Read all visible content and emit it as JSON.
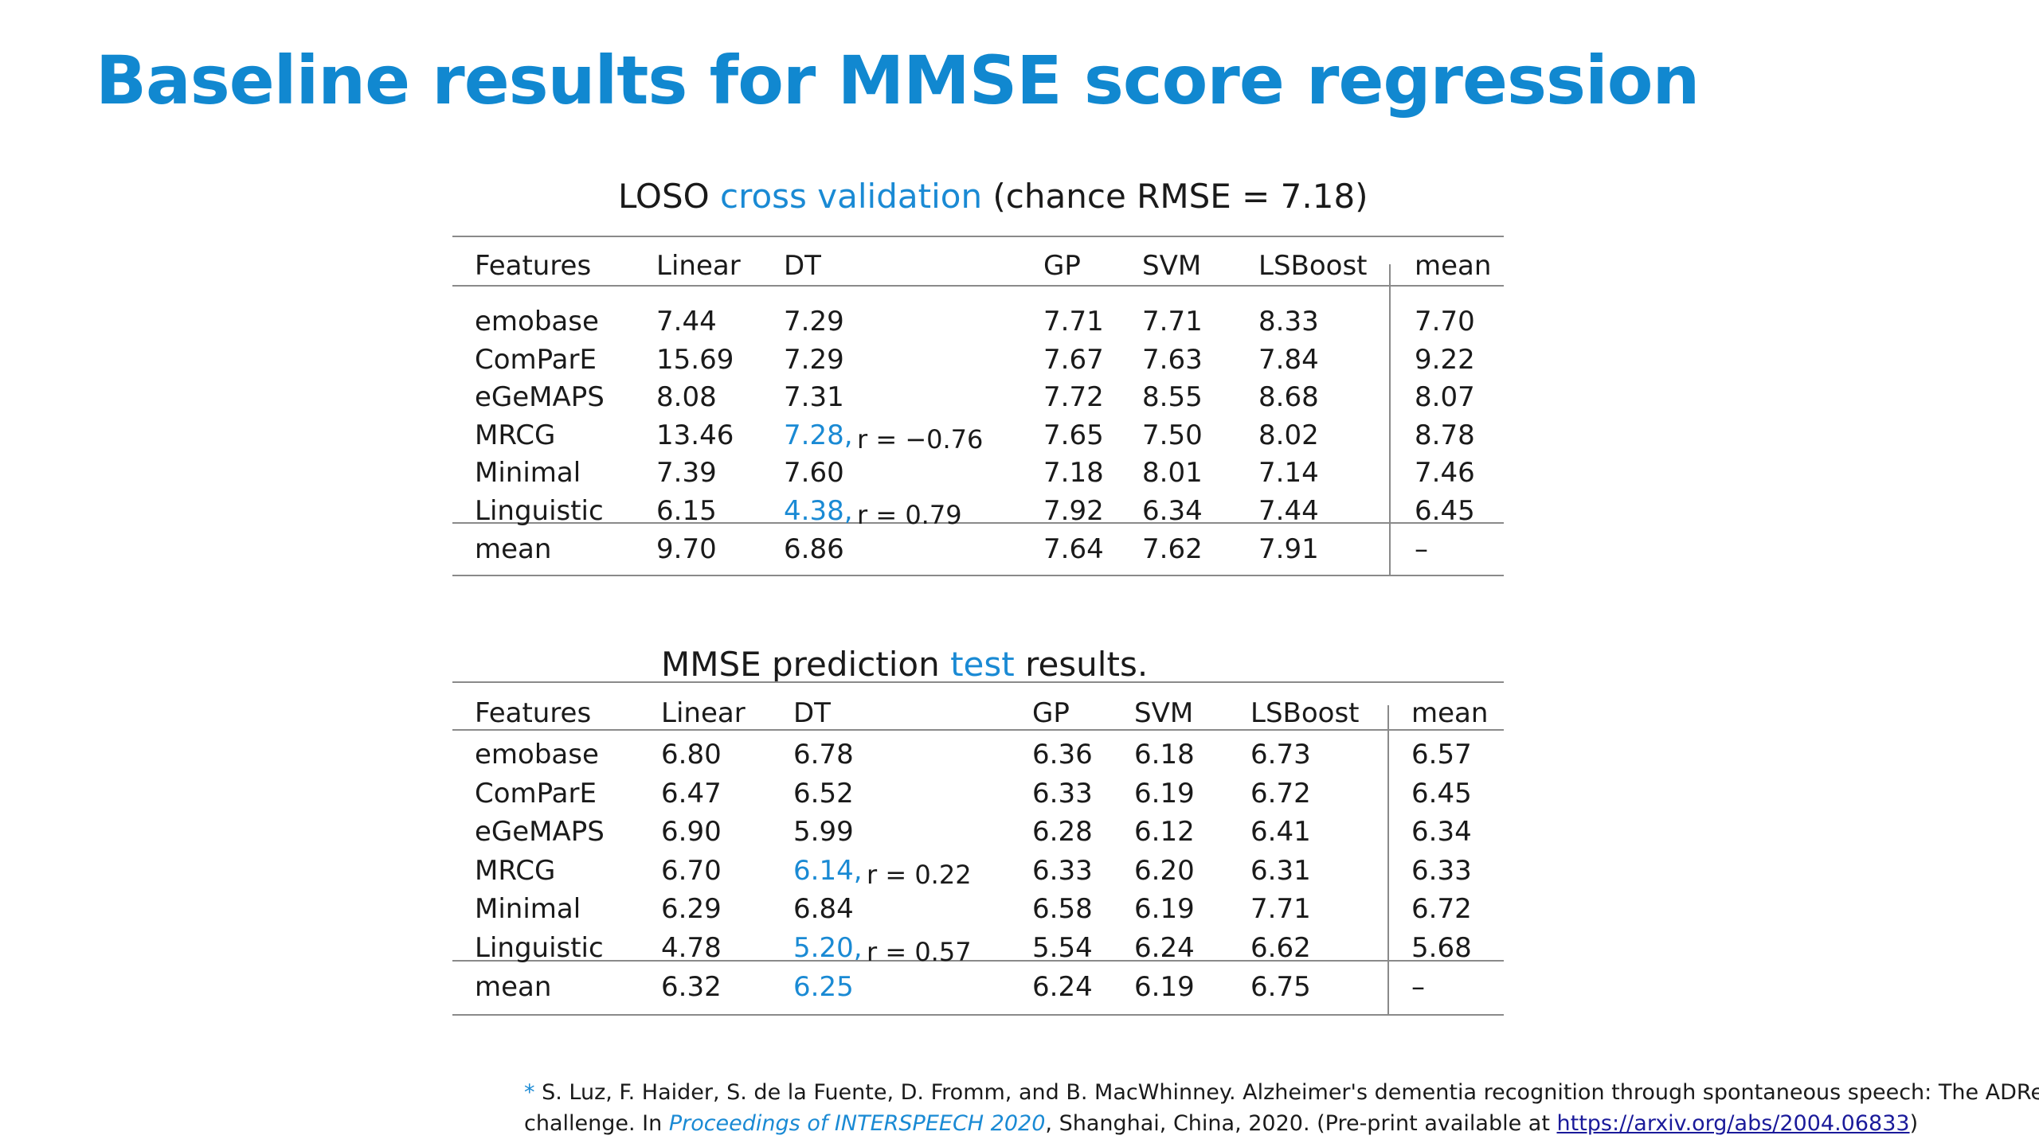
{
  "title": "Baseline results for MMSE score regression",
  "table1": {
    "caption": {
      "pre": "LOSO ",
      "highlight": "cross validation",
      "post": " (chance RMSE = 7.18)"
    },
    "headers": [
      "Features",
      "Linear",
      "DT",
      "GP",
      "SVM",
      "LSBoost",
      "mean"
    ],
    "rows": [
      [
        "emobase",
        "7.44",
        "7.29",
        "7.71",
        "7.71",
        "8.33",
        "7.70"
      ],
      [
        "ComParE",
        "15.69",
        "7.29",
        "7.67",
        "7.63",
        "7.84",
        "9.22"
      ],
      [
        "eGeMAPS",
        "8.08",
        "7.31",
        "7.72",
        "8.55",
        "8.68",
        "8.07"
      ],
      [
        "MRCG",
        "13.46",
        "7.28,",
        "7.65",
        "7.50",
        "8.02",
        "8.78"
      ],
      [
        "Minimal",
        "7.39",
        "7.60",
        "7.18",
        "8.01",
        "7.14",
        "7.46"
      ],
      [
        "Linguistic",
        "6.15",
        "4.38,",
        "7.92",
        "6.34",
        "7.44",
        "6.45"
      ]
    ],
    "highlight_cells": [
      [
        3,
        2
      ],
      [
        5,
        2
      ]
    ],
    "r_notes": {
      "3": "r = −0.76",
      "5": "r = 0.79"
    },
    "mean_row": [
      "mean",
      "9.70",
      "6.86",
      "7.64",
      "7.62",
      "7.91",
      "–"
    ]
  },
  "table2": {
    "caption": {
      "pre": "MMSE prediction ",
      "highlight": "test",
      "post": " results."
    },
    "headers": [
      "Features",
      "Linear",
      "DT",
      "GP",
      "SVM",
      "LSBoost",
      "mean"
    ],
    "rows": [
      [
        "emobase",
        "6.80",
        "6.78",
        "6.36",
        "6.18",
        "6.73",
        "6.57"
      ],
      [
        "ComParE",
        "6.47",
        "6.52",
        "6.33",
        "6.19",
        "6.72",
        "6.45"
      ],
      [
        "eGeMAPS",
        "6.90",
        "5.99",
        "6.28",
        "6.12",
        "6.41",
        "6.34"
      ],
      [
        "MRCG",
        "6.70",
        "6.14,",
        "6.33",
        "6.20",
        "6.31",
        "6.33"
      ],
      [
        "Minimal",
        "6.29",
        "6.84",
        "6.58",
        "6.19",
        "7.71",
        "6.72"
      ],
      [
        "Linguistic",
        "4.78",
        "5.20,",
        "5.54",
        "6.24",
        "6.62",
        "5.68"
      ]
    ],
    "highlight_cells": [
      [
        3,
        2
      ],
      [
        5,
        2
      ]
    ],
    "r_notes": {
      "3": "r = 0.22",
      "5": "r = 0.57"
    },
    "mean_row": [
      "mean",
      "6.32",
      "6.25",
      "6.24",
      "6.19",
      "6.75",
      "–"
    ],
    "mean_highlight_col": 2
  },
  "footnote": {
    "star": "*",
    "line1": " S. Luz, F. Haider, S. de la Fuente, D. Fromm, and B. MacWhinney. Alzheimer's dementia recognition through  spontaneous speech: The ADReSS",
    "line2_pre": "challenge. In ",
    "line2_italic": "Proceedings of INTERSPEECH 2020",
    "line2_mid": ", Shanghai, China, 2020.  (Pre-print available at ",
    "link": "https://arxiv.org/abs/2004.06833",
    "line2_post": ")"
  },
  "colors": {
    "title": "#1188d0",
    "highlight": "#1a8ad4",
    "rule": "#8a8a8a"
  }
}
